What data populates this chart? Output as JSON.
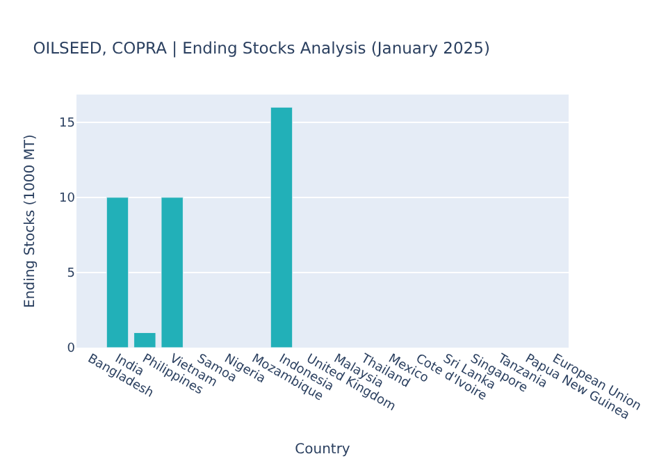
{
  "chart_data": {
    "type": "bar",
    "title": "OILSEED, COPRA | Ending Stocks Analysis (January 2025)",
    "xlabel": "Country",
    "ylabel": "Ending Stocks (1000 MT)",
    "categories": [
      "Bangladesh",
      "India",
      "Philippines",
      "Vietnam",
      "Samoa",
      "Nigeria",
      "Mozambique",
      "Indonesia",
      "United Kingdom",
      "Malaysia",
      "Thailand",
      "Mexico",
      "Cote d'Ivoire",
      "Sri Lanka",
      "Singapore",
      "Tanzania",
      "Papua New Guinea",
      "European Union"
    ],
    "values": [
      null,
      10,
      1,
      10,
      null,
      null,
      null,
      16,
      null,
      null,
      null,
      null,
      null,
      null,
      null,
      null,
      null,
      null
    ],
    "color": "#22b0b8",
    "ylim": [
      0,
      16.84
    ],
    "yticks": [
      0,
      5,
      10,
      15
    ],
    "grid": "y"
  }
}
